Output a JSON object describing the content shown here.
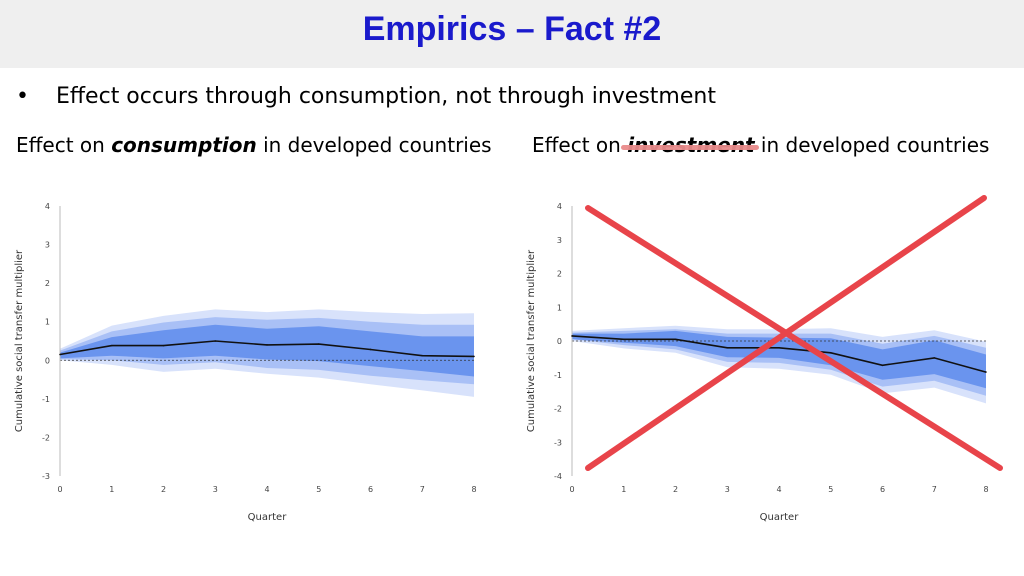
{
  "header": {
    "title": "Empirics – Fact #2"
  },
  "bullet": {
    "symbol": "•",
    "text": "Effect occurs through consumption, not through investment"
  },
  "left_caption": {
    "prefix": "Effect on ",
    "emph": "consumption",
    "suffix": " in developed countries"
  },
  "right_caption": {
    "prefix": "Effect on ",
    "emph": "investment",
    "suffix": " in developed countries"
  },
  "colors": {
    "title": "#1a1acc",
    "band_outer": "#d8e2fb",
    "band_mid": "#a9c0f6",
    "band_inner": "#6a94ee",
    "line": "#111111",
    "cross": "#e8444a"
  },
  "chart_data": [
    {
      "type": "line",
      "xlabel": "Quarter",
      "ylabel": "Cumulative social transfer multiplier",
      "x": [
        0,
        1,
        2,
        3,
        4,
        5,
        6,
        7,
        8
      ],
      "ylim": [
        -3,
        4
      ],
      "yticks": [
        4,
        3,
        2,
        1,
        0,
        -1,
        -2,
        -3
      ],
      "xticks": [
        0,
        1,
        2,
        3,
        4,
        5,
        6,
        7,
        8
      ],
      "zero_line": true,
      "series": [
        {
          "values": [
            0.15,
            0.38,
            0.38,
            0.5,
            0.4,
            0.42,
            0.28,
            0.12,
            0.1
          ]
        }
      ],
      "bands": {
        "outer_upper": [
          0.3,
          0.9,
          1.15,
          1.32,
          1.25,
          1.32,
          1.25,
          1.2,
          1.22
        ],
        "outer_lower": [
          0.0,
          -0.12,
          -0.3,
          -0.22,
          -0.35,
          -0.45,
          -0.62,
          -0.78,
          -0.95
        ],
        "mid_upper": [
          0.25,
          0.75,
          0.98,
          1.12,
          1.05,
          1.1,
          1.0,
          0.92,
          0.92
        ],
        "mid_lower": [
          0.03,
          0.0,
          -0.12,
          -0.05,
          -0.2,
          -0.25,
          -0.4,
          -0.52,
          -0.62
        ],
        "inner_upper": [
          0.2,
          0.6,
          0.78,
          0.92,
          0.82,
          0.88,
          0.75,
          0.62,
          0.62
        ],
        "inner_lower": [
          0.05,
          0.12,
          0.05,
          0.12,
          0.02,
          -0.02,
          -0.15,
          -0.28,
          -0.42
        ]
      }
    },
    {
      "type": "line",
      "xlabel": "Quarter",
      "ylabel": "Cumulative social transfer multiplier",
      "x": [
        0,
        1,
        2,
        3,
        4,
        5,
        6,
        7,
        8
      ],
      "ylim": [
        -4,
        4
      ],
      "yticks": [
        4,
        3,
        2,
        1,
        0,
        -1,
        -2,
        -3,
        -4
      ],
      "xticks": [
        0,
        1,
        2,
        3,
        4,
        5,
        6,
        7,
        8
      ],
      "zero_line": true,
      "crossed_out": true,
      "series": [
        {
          "values": [
            0.15,
            0.05,
            0.05,
            -0.2,
            -0.2,
            -0.35,
            -0.72,
            -0.5,
            -0.92
          ]
        }
      ],
      "bands": {
        "outer_upper": [
          0.3,
          0.38,
          0.45,
          0.35,
          0.35,
          0.38,
          0.12,
          0.32,
          -0.02
        ],
        "outer_lower": [
          0.0,
          -0.22,
          -0.35,
          -0.78,
          -0.82,
          -1.0,
          -1.55,
          -1.38,
          -1.85
        ],
        "mid_upper": [
          0.25,
          0.3,
          0.35,
          0.22,
          0.22,
          0.22,
          -0.08,
          0.15,
          -0.2
        ],
        "mid_lower": [
          0.05,
          -0.12,
          -0.25,
          -0.62,
          -0.65,
          -0.85,
          -1.35,
          -1.18,
          -1.62
        ],
        "inner_upper": [
          0.22,
          0.22,
          0.3,
          0.12,
          0.1,
          0.08,
          -0.25,
          0.02,
          -0.4
        ],
        "inner_lower": [
          0.05,
          -0.05,
          -0.15,
          -0.48,
          -0.5,
          -0.72,
          -1.15,
          -0.98,
          -1.4
        ]
      }
    }
  ]
}
